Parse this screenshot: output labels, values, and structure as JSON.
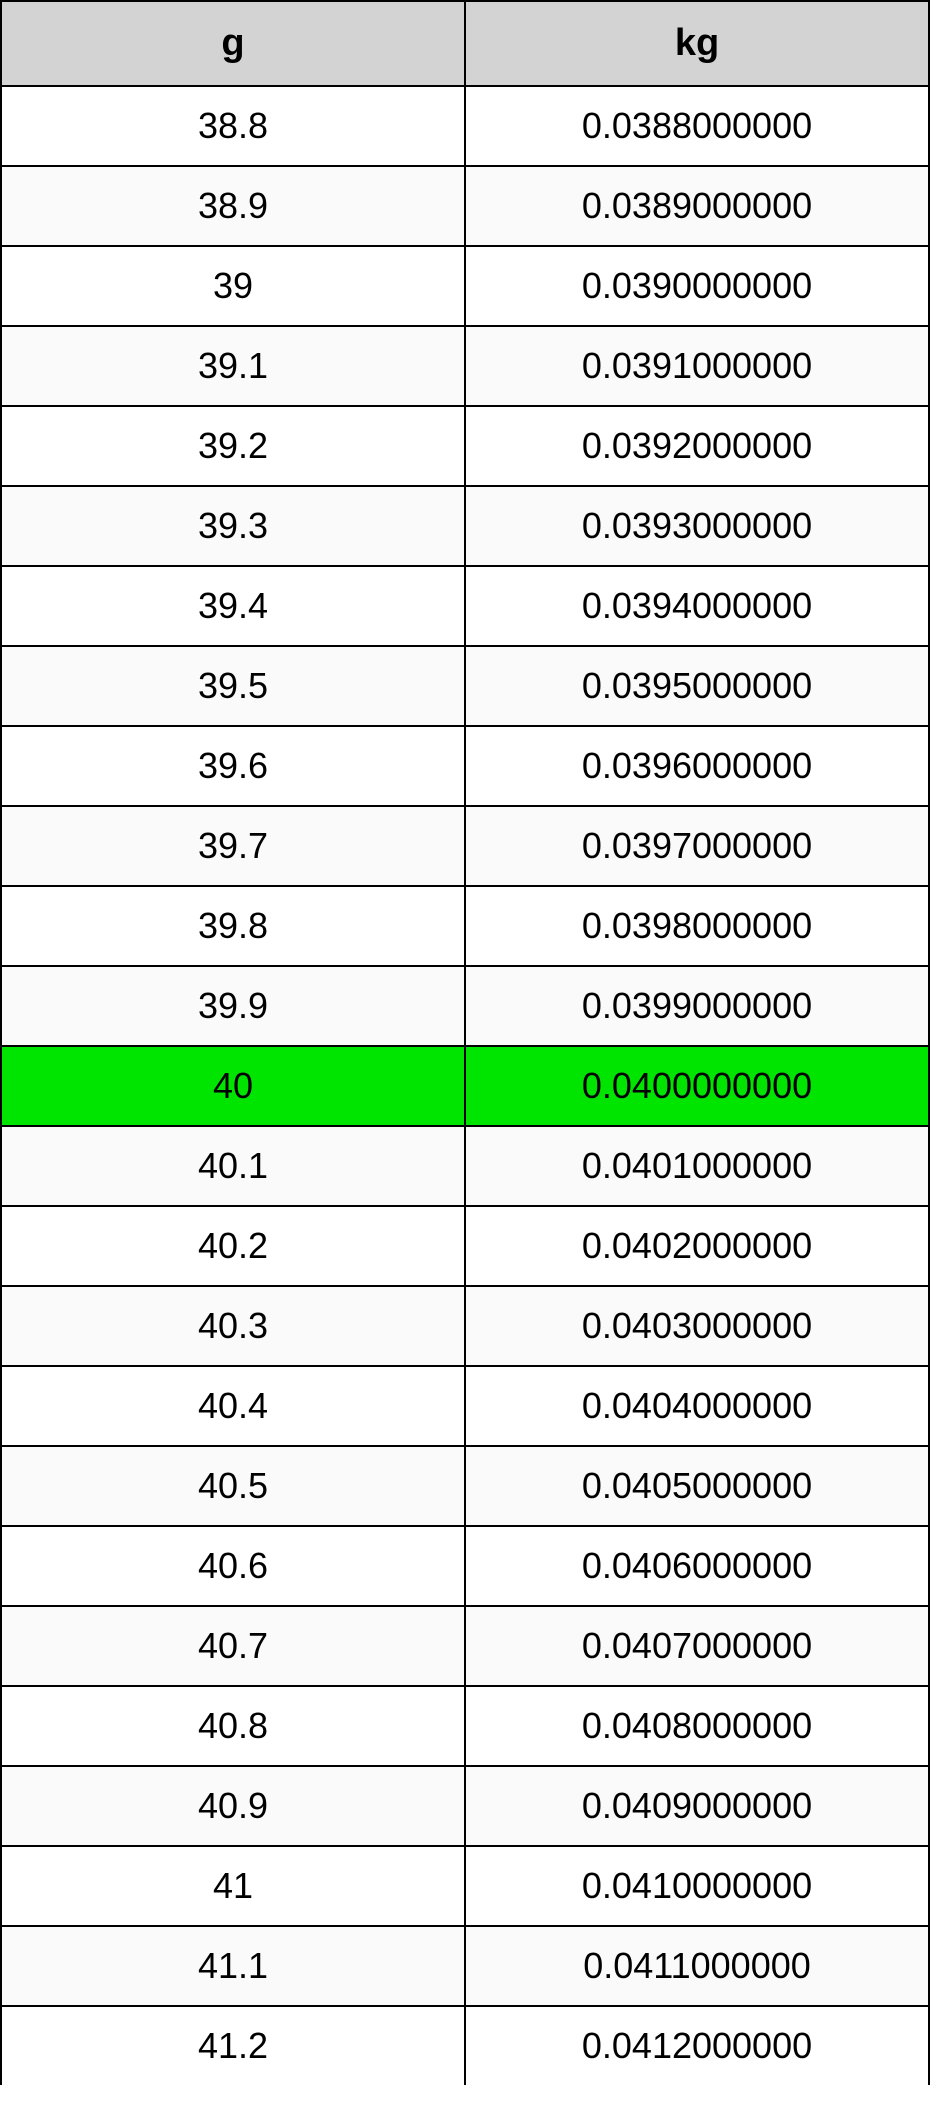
{
  "table": {
    "columns": [
      "g",
      "kg"
    ],
    "header_bg": "#d3d3d3",
    "row_bg_odd": "#ffffff",
    "row_bg_even": "#fafafa",
    "highlight_bg": "#00e500",
    "highlight_index": 12,
    "border_color": "#000000",
    "text_color": "#000000",
    "header_fontsize": 38,
    "cell_fontsize": 36,
    "rows": [
      [
        "38.8",
        "0.0388000000"
      ],
      [
        "38.9",
        "0.0389000000"
      ],
      [
        "39",
        "0.0390000000"
      ],
      [
        "39.1",
        "0.0391000000"
      ],
      [
        "39.2",
        "0.0392000000"
      ],
      [
        "39.3",
        "0.0393000000"
      ],
      [
        "39.4",
        "0.0394000000"
      ],
      [
        "39.5",
        "0.0395000000"
      ],
      [
        "39.6",
        "0.0396000000"
      ],
      [
        "39.7",
        "0.0397000000"
      ],
      [
        "39.8",
        "0.0398000000"
      ],
      [
        "39.9",
        "0.0399000000"
      ],
      [
        "40",
        "0.0400000000"
      ],
      [
        "40.1",
        "0.0401000000"
      ],
      [
        "40.2",
        "0.0402000000"
      ],
      [
        "40.3",
        "0.0403000000"
      ],
      [
        "40.4",
        "0.0404000000"
      ],
      [
        "40.5",
        "0.0405000000"
      ],
      [
        "40.6",
        "0.0406000000"
      ],
      [
        "40.7",
        "0.0407000000"
      ],
      [
        "40.8",
        "0.0408000000"
      ],
      [
        "40.9",
        "0.0409000000"
      ],
      [
        "41",
        "0.0410000000"
      ],
      [
        "41.1",
        "0.0411000000"
      ],
      [
        "41.2",
        "0.0412000000"
      ]
    ]
  }
}
